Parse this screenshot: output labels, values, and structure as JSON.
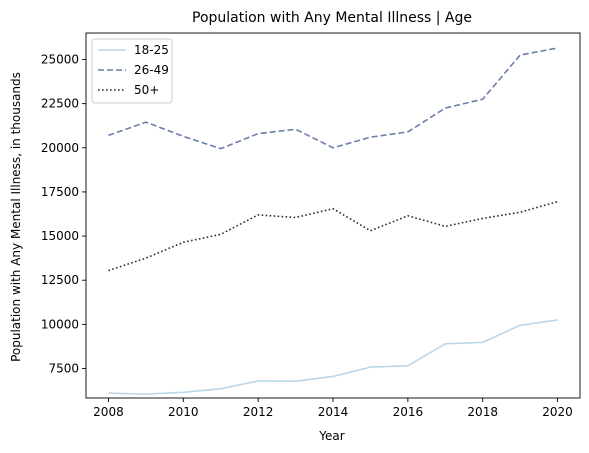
{
  "chart_data": {
    "type": "line",
    "title": "Population with Any Mental Illness | Age",
    "xlabel": "Year",
    "ylabel": "Population with Any Mental Illness, in thousands",
    "x": [
      2008,
      2009,
      2010,
      2011,
      2012,
      2013,
      2014,
      2015,
      2016,
      2017,
      2018,
      2019,
      2020
    ],
    "xlim": [
      2007.4,
      2020.6
    ],
    "ylim": [
      5830,
      26500
    ],
    "xticks": [
      2008,
      2010,
      2012,
      2014,
      2016,
      2018,
      2020
    ],
    "yticks": [
      7500,
      10000,
      12500,
      15000,
      17500,
      20000,
      22500,
      25000
    ],
    "grid": false,
    "legend_position": "top-left",
    "series": [
      {
        "name": "18-25",
        "color": "#b9d7e8",
        "dash": "solid",
        "values": [
          6100,
          6050,
          6150,
          6350,
          6800,
          6780,
          7050,
          7580,
          7650,
          8900,
          8980,
          9950,
          10250
        ]
      },
      {
        "name": "26-49",
        "color": "#6a7fa9",
        "dash": "dashed",
        "values": [
          20700,
          21450,
          20650,
          19950,
          20800,
          21050,
          20000,
          20600,
          20900,
          22250,
          22750,
          25250,
          25650
        ]
      },
      {
        "name": "50+",
        "color": "#2b2b33",
        "dash": "dotted",
        "values": [
          13050,
          13750,
          14650,
          15100,
          16200,
          16050,
          16550,
          15300,
          16150,
          15550,
          16000,
          16350,
          16950
        ]
      }
    ]
  }
}
